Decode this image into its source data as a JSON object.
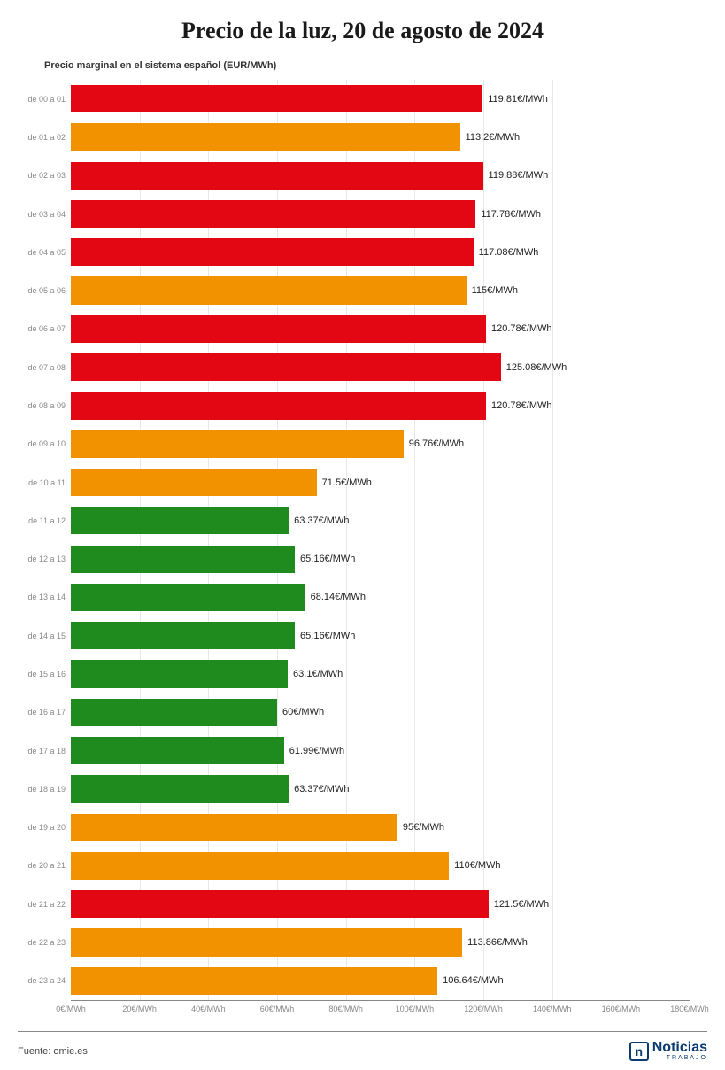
{
  "title": "Precio de la luz, 20 de agosto de 2024",
  "subtitle": "Precio marginal en el sistema español (EUR/MWh)",
  "source_label": "Fuente: omie.es",
  "logo": {
    "mark": "n",
    "main": "Noticias",
    "sub": "TRABAJO"
  },
  "chart": {
    "type": "bar-horizontal",
    "xmax": 180,
    "xtick_step": 20,
    "xtick_unit": "€/MWh",
    "value_unit": "€/MWh",
    "background_color": "#ffffff",
    "grid_color": "#e8e8e8",
    "axis_color": "#888888",
    "label_color": "#888888",
    "value_label_color": "#222222",
    "title_fontsize": 26,
    "subtitle_fontsize": 11,
    "ylabel_fontsize": 9,
    "xtick_fontsize": 9,
    "value_fontsize": 11,
    "bar_height_ratio": 0.72,
    "colors": {
      "high": "#e30613",
      "mid": "#f39200",
      "low": "#1f8b1f"
    },
    "rows": [
      {
        "label": "de 00 a 01",
        "value": 119.81,
        "tier": "high"
      },
      {
        "label": "de 01 a 02",
        "value": 113.2,
        "tier": "mid"
      },
      {
        "label": "de 02 a 03",
        "value": 119.88,
        "tier": "high"
      },
      {
        "label": "de 03 a 04",
        "value": 117.78,
        "tier": "high"
      },
      {
        "label": "de 04 a 05",
        "value": 117.08,
        "tier": "high"
      },
      {
        "label": "de 05 a 06",
        "value": 115,
        "tier": "mid"
      },
      {
        "label": "de 06 a 07",
        "value": 120.78,
        "tier": "high"
      },
      {
        "label": "de 07 a 08",
        "value": 125.08,
        "tier": "high"
      },
      {
        "label": "de 08 a 09",
        "value": 120.78,
        "tier": "high"
      },
      {
        "label": "de 09 a 10",
        "value": 96.76,
        "tier": "mid"
      },
      {
        "label": "de 10 a 11",
        "value": 71.5,
        "tier": "mid"
      },
      {
        "label": "de 11 a 12",
        "value": 63.37,
        "tier": "low"
      },
      {
        "label": "de 12 a 13",
        "value": 65.16,
        "tier": "low"
      },
      {
        "label": "de 13 a 14",
        "value": 68.14,
        "tier": "low"
      },
      {
        "label": "de 14 a 15",
        "value": 65.16,
        "tier": "low"
      },
      {
        "label": "de 15 a 16",
        "value": 63.1,
        "tier": "low"
      },
      {
        "label": "de 16 a 17",
        "value": 60,
        "tier": "low"
      },
      {
        "label": "de 17 a 18",
        "value": 61.99,
        "tier": "low"
      },
      {
        "label": "de 18 a 19",
        "value": 63.37,
        "tier": "low"
      },
      {
        "label": "de 19 a 20",
        "value": 95,
        "tier": "mid"
      },
      {
        "label": "de 20 a 21",
        "value": 110,
        "tier": "mid"
      },
      {
        "label": "de 21 a 22",
        "value": 121.5,
        "tier": "high"
      },
      {
        "label": "de 22 a 23",
        "value": 113.86,
        "tier": "mid"
      },
      {
        "label": "de 23 a 24",
        "value": 106.64,
        "tier": "mid"
      }
    ]
  }
}
